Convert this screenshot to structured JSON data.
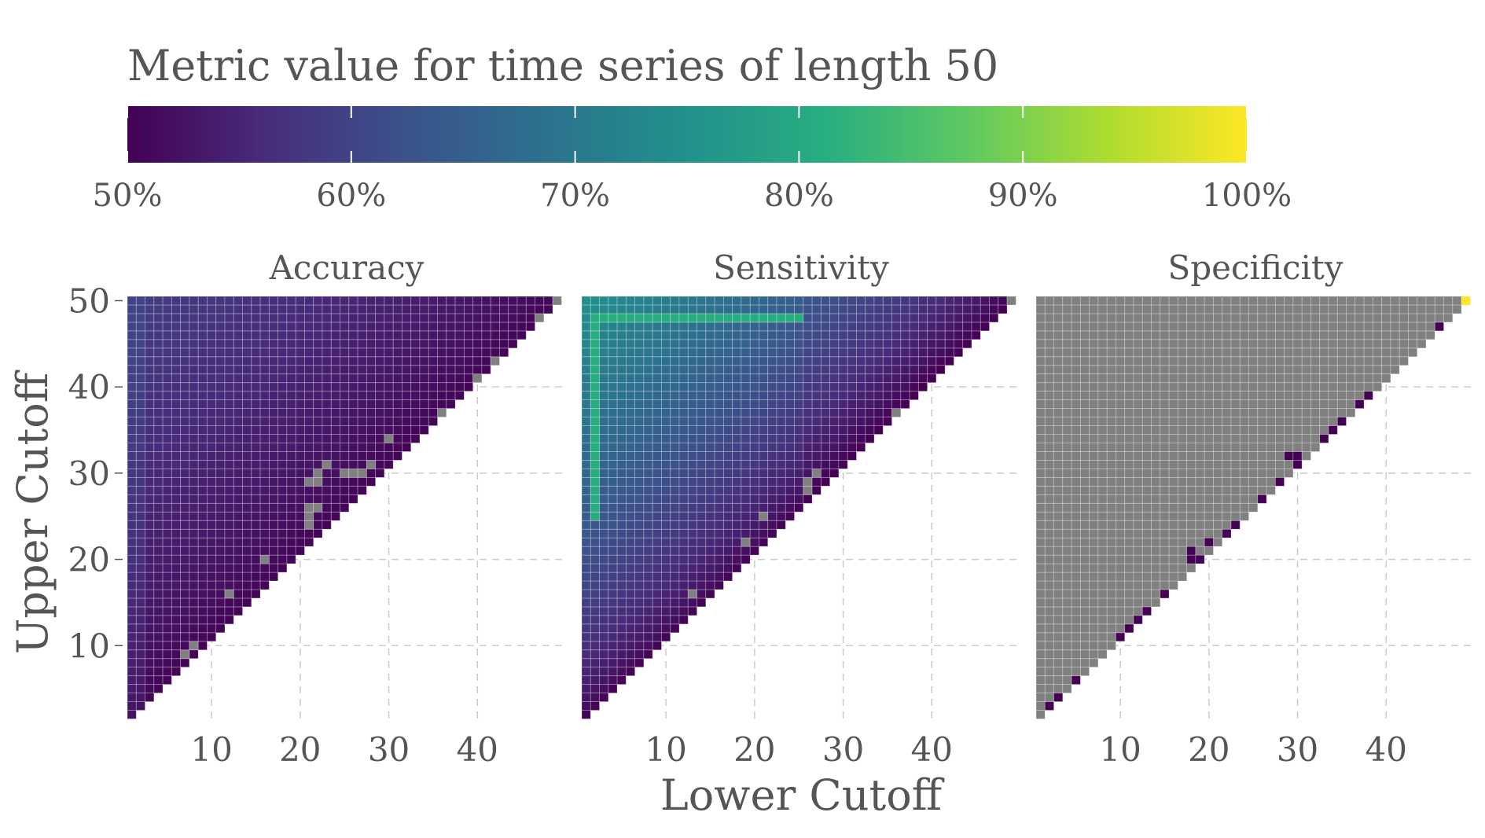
{
  "chart_data": {
    "type": "heatmap",
    "title": "",
    "legend": {
      "title": "Metric value for time series of length 50",
      "position": "top",
      "range": [
        0.5,
        1.0
      ],
      "ticks": [
        {
          "value": 0.5,
          "label": "50%"
        },
        {
          "value": 0.6,
          "label": "60%"
        },
        {
          "value": 0.7,
          "label": "70%"
        },
        {
          "value": 0.8,
          "label": "80%"
        },
        {
          "value": 0.9,
          "label": "90%"
        },
        {
          "value": 1.0,
          "label": "100%"
        }
      ],
      "colormap": [
        "#440154",
        "#472d7b",
        "#3b528b",
        "#2c728e",
        "#21918c",
        "#28ae80",
        "#5ec962",
        "#addc30",
        "#fde725"
      ]
    },
    "na_color": "#808080",
    "xlabel": "Lower Cutoff",
    "ylabel": "Upper Cutoff",
    "x_range": [
      1,
      49
    ],
    "y_range": [
      2,
      50
    ],
    "x_ticks": [
      10,
      20,
      30,
      40
    ],
    "x_tick_labels": [
      "10",
      "20",
      "30",
      "40"
    ],
    "y_ticks": [
      10,
      20,
      30,
      40,
      50
    ],
    "y_tick_labels": [
      "10",
      "20",
      "30",
      "40",
      "50"
    ],
    "grid": true,
    "facets": [
      {
        "name": "Accuracy",
        "model": "accuracy",
        "value_range": [
          0.5,
          0.6
        ],
        "na_cells": [
          [
            49,
            50
          ],
          [
            47,
            48
          ],
          [
            42,
            43
          ],
          [
            40,
            41
          ],
          [
            36,
            37
          ],
          [
            30,
            34
          ],
          [
            28,
            31
          ],
          [
            27,
            30
          ],
          [
            26,
            30
          ],
          [
            25,
            30
          ],
          [
            23,
            31
          ],
          [
            22,
            30
          ],
          [
            22,
            29
          ],
          [
            21,
            29
          ],
          [
            22,
            26
          ],
          [
            21,
            26
          ],
          [
            21,
            25
          ],
          [
            21,
            24
          ],
          [
            16,
            20
          ],
          [
            12,
            16
          ],
          [
            8,
            10
          ],
          [
            7,
            9
          ]
        ]
      },
      {
        "name": "Sensitivity",
        "model": "sensitivity",
        "value_range": [
          0.5,
          0.8
        ],
        "na_cells": [
          [
            49,
            50
          ],
          [
            36,
            37
          ],
          [
            27,
            30
          ],
          [
            26,
            29
          ],
          [
            26,
            28
          ],
          [
            21,
            25
          ],
          [
            19,
            22
          ],
          [
            13,
            16
          ]
        ]
      },
      {
        "name": "Specificity",
        "model": "specificity",
        "value_range": [
          0.5,
          1.0
        ],
        "colored_cells": [
          {
            "x": 49,
            "y": 50,
            "value": 1.0
          },
          {
            "x": 46,
            "y": 47,
            "value": 0.5
          },
          {
            "x": 38,
            "y": 39,
            "value": 0.5
          },
          {
            "x": 37,
            "y": 38,
            "value": 0.5
          },
          {
            "x": 35,
            "y": 36,
            "value": 0.5
          },
          {
            "x": 34,
            "y": 35,
            "value": 0.5
          },
          {
            "x": 33,
            "y": 34,
            "value": 0.5
          },
          {
            "x": 29,
            "y": 32,
            "value": 0.5
          },
          {
            "x": 30,
            "y": 32,
            "value": 0.5
          },
          {
            "x": 30,
            "y": 31,
            "value": 0.5
          },
          {
            "x": 28,
            "y": 29,
            "value": 0.5
          },
          {
            "x": 26,
            "y": 27,
            "value": 0.5
          },
          {
            "x": 23,
            "y": 24,
            "value": 0.5
          },
          {
            "x": 22,
            "y": 23,
            "value": 0.5
          },
          {
            "x": 20,
            "y": 22,
            "value": 0.5
          },
          {
            "x": 18,
            "y": 21,
            "value": 0.5
          },
          {
            "x": 18,
            "y": 20,
            "value": 0.5
          },
          {
            "x": 19,
            "y": 20,
            "value": 0.5
          },
          {
            "x": 15,
            "y": 16,
            "value": 0.5
          },
          {
            "x": 13,
            "y": 14,
            "value": 0.5
          },
          {
            "x": 12,
            "y": 13,
            "value": 0.5
          },
          {
            "x": 11,
            "y": 12,
            "value": 0.5
          },
          {
            "x": 10,
            "y": 11,
            "value": 0.5
          },
          {
            "x": 5,
            "y": 6,
            "value": 0.5
          },
          {
            "x": 3,
            "y": 4,
            "value": 0.5
          },
          {
            "x": 2,
            "y": 3,
            "value": 0.5
          }
        ]
      }
    ]
  }
}
